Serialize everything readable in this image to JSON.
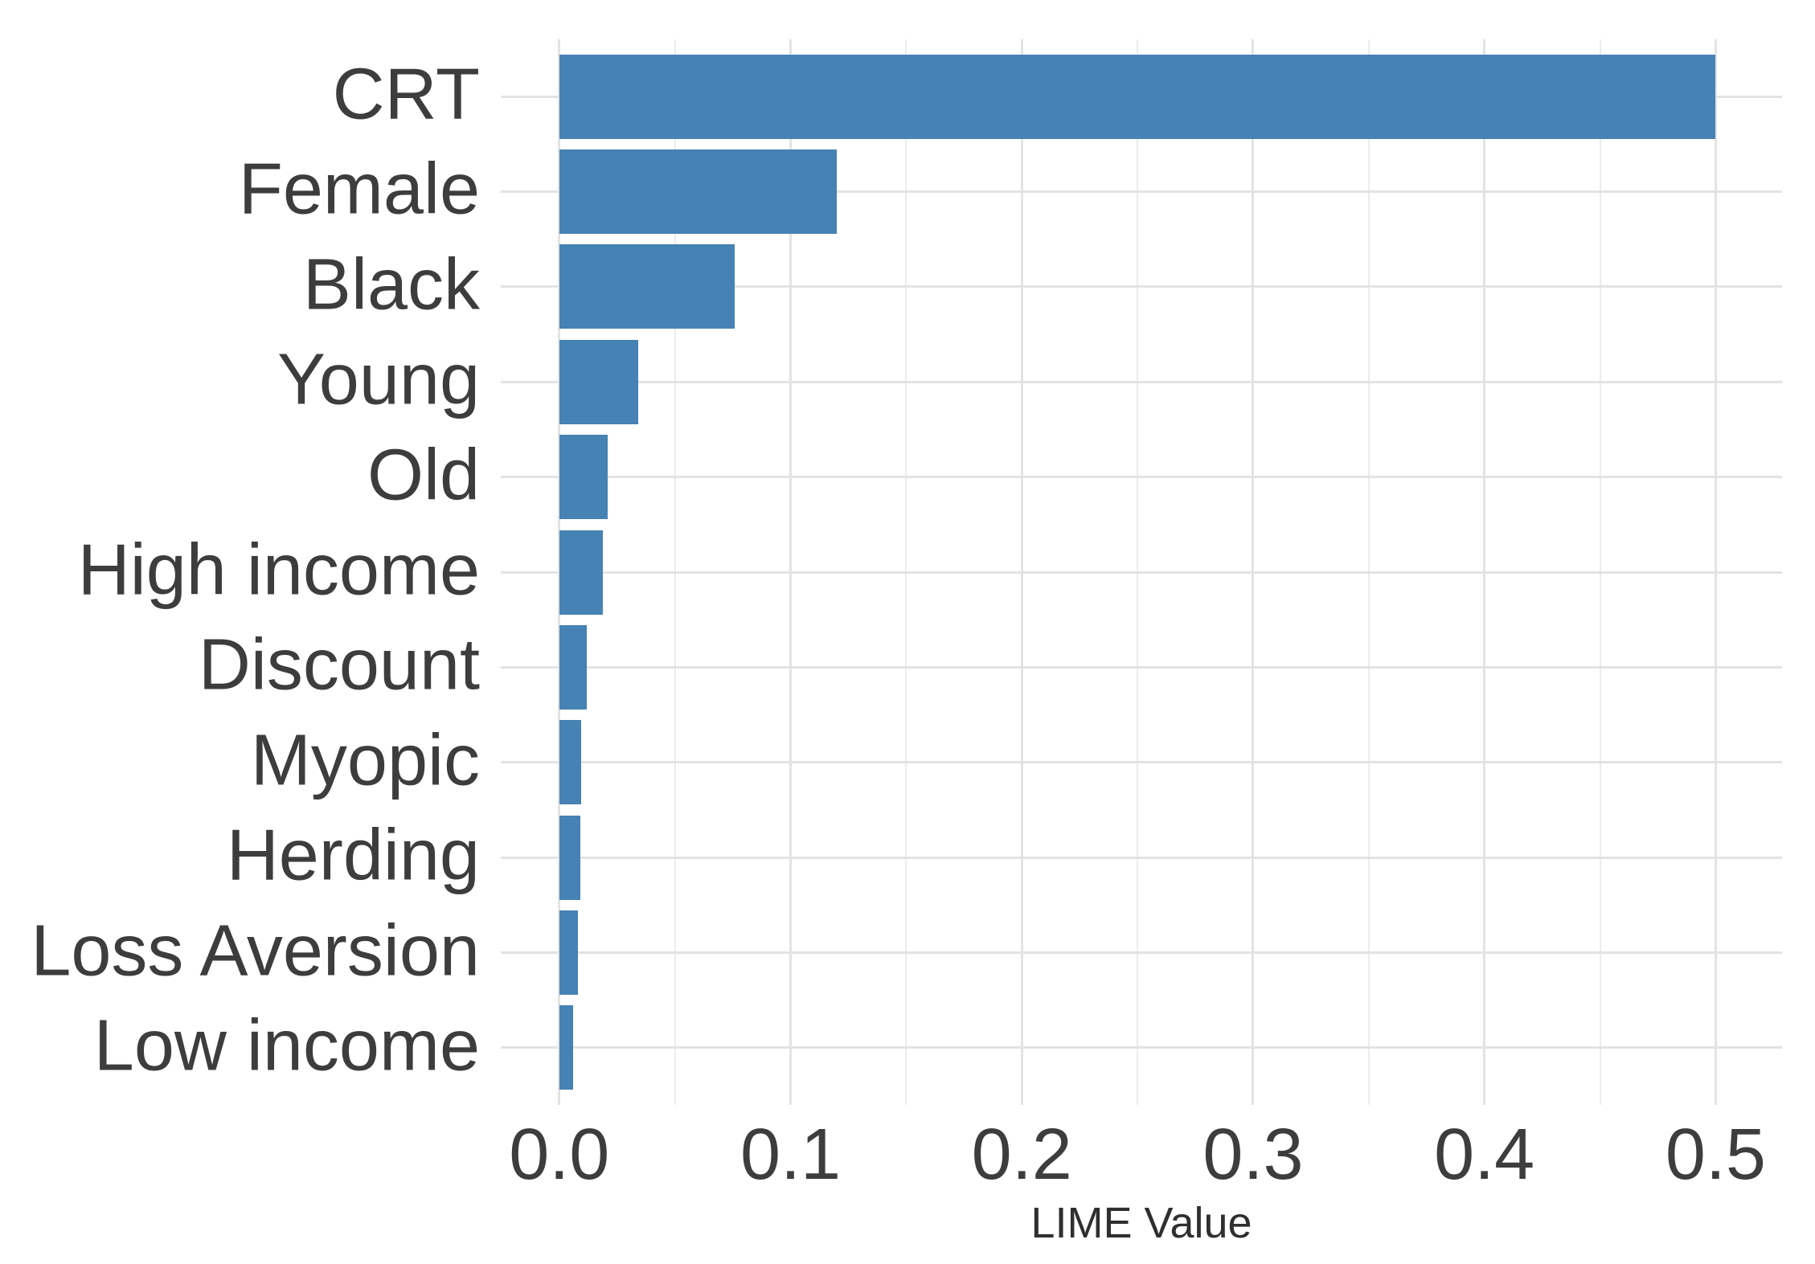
{
  "chart_data": {
    "type": "bar",
    "orientation": "horizontal",
    "title": "",
    "xlabel": "LIME Value",
    "ylabel": "",
    "categories": [
      "CRT",
      "Female",
      "Black",
      "Young",
      "Old",
      "High income",
      "Discount",
      "Myopic",
      "Herding",
      "Loss Aversion",
      "Low income"
    ],
    "values": [
      0.5,
      0.12,
      0.076,
      0.034,
      0.021,
      0.019,
      0.012,
      0.0095,
      0.009,
      0.008,
      0.006
    ],
    "series_name": "LIME Value",
    "xlim": [
      -0.0253,
      0.5287
    ],
    "x_ticks": [
      0.0,
      0.1,
      0.2,
      0.3,
      0.4,
      0.5
    ],
    "x_tick_labels": [
      "0.0",
      "0.1",
      "0.2",
      "0.3",
      "0.4",
      "0.5"
    ],
    "x_minor_ticks": [
      0.05,
      0.15,
      0.25,
      0.35,
      0.45
    ],
    "grid": "on",
    "legend_position": "none",
    "colors": {
      "bar": "#4682B4",
      "grid_major": "#E3E3E3",
      "grid_minor": "#ECECEC",
      "axis_text": "#3D3D3D",
      "axis_title": "#2F2F2F",
      "background": "#FFFFFF"
    }
  }
}
